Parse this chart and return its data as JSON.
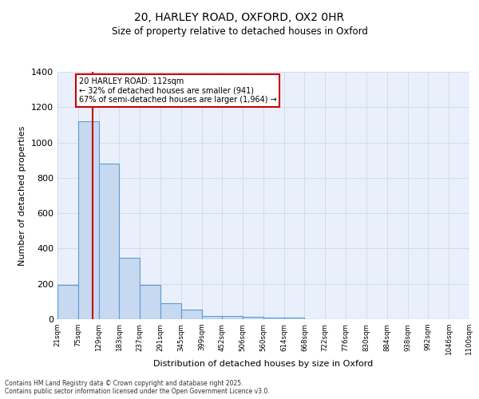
{
  "title1": "20, HARLEY ROAD, OXFORD, OX2 0HR",
  "title2": "Size of property relative to detached houses in Oxford",
  "xlabel": "Distribution of detached houses by size in Oxford",
  "ylabel": "Number of detached properties",
  "bins": [
    "21sqm",
    "75sqm",
    "129sqm",
    "183sqm",
    "237sqm",
    "291sqm",
    "345sqm",
    "399sqm",
    "452sqm",
    "506sqm",
    "560sqm",
    "614sqm",
    "668sqm",
    "722sqm",
    "776sqm",
    "830sqm",
    "884sqm",
    "938sqm",
    "992sqm",
    "1046sqm",
    "1100sqm"
  ],
  "bin_values": [
    21,
    75,
    129,
    183,
    237,
    291,
    345,
    399,
    452,
    506,
    560,
    614,
    668,
    722,
    776,
    830,
    884,
    938,
    992,
    1046,
    1100
  ],
  "bar_heights": [
    195,
    1120,
    880,
    350,
    195,
    90,
    55,
    20,
    20,
    15,
    10,
    10,
    0,
    0,
    0,
    0,
    0,
    0,
    0,
    0
  ],
  "bar_color": "#c6d9f0",
  "bar_edge_color": "#5b9bd5",
  "property_line_x": 112,
  "annotation_text": "20 HARLEY ROAD: 112sqm\n← 32% of detached houses are smaller (941)\n67% of semi-detached houses are larger (1,964) →",
  "annotation_box_color": "#ffffff",
  "annotation_box_edge_color": "#cc0000",
  "property_line_color": "#cc0000",
  "ylim": [
    0,
    1400
  ],
  "yticks": [
    0,
    200,
    400,
    600,
    800,
    1000,
    1200,
    1400
  ],
  "grid_color": "#d0d8e8",
  "bg_color": "#eaf0fb",
  "footer1": "Contains HM Land Registry data © Crown copyright and database right 2025.",
  "footer2": "Contains public sector information licensed under the Open Government Licence v3.0."
}
